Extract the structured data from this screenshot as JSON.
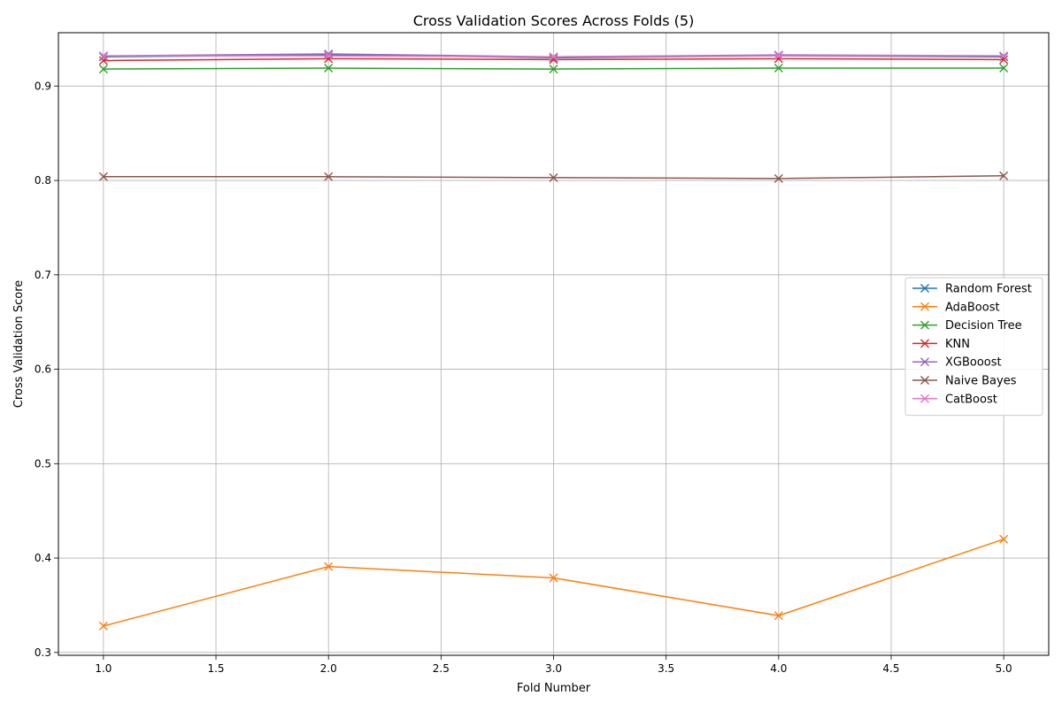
{
  "chart_data": {
    "type": "line",
    "title": "Cross Validation Scores Across Folds (5)",
    "xlabel": "Fold Number",
    "ylabel": "Cross Validation Score",
    "x": [
      1,
      2,
      3,
      4,
      5
    ],
    "xlim": [
      0.8,
      5.2
    ],
    "ylim": [
      0.297,
      0.9565
    ],
    "xticks": [
      1.0,
      1.5,
      2.0,
      2.5,
      3.0,
      3.5,
      4.0,
      4.5,
      5.0
    ],
    "xtick_labels": [
      "1.0",
      "1.5",
      "2.0",
      "2.5",
      "3.0",
      "3.5",
      "4.0",
      "4.5",
      "5.0"
    ],
    "yticks": [
      0.3,
      0.4,
      0.5,
      0.6,
      0.7,
      0.8,
      0.9
    ],
    "ytick_labels": [
      "0.3",
      "0.4",
      "0.5",
      "0.6",
      "0.7",
      "0.8",
      "0.9"
    ],
    "grid": true,
    "legend_position": "center-right",
    "marker": "x",
    "series": [
      {
        "name": "Random Forest",
        "color": "#1f77b4",
        "values": [
          0.931,
          0.933,
          0.93,
          0.932,
          0.931
        ]
      },
      {
        "name": "AdaBoost",
        "color": "#ff7f0e",
        "values": [
          0.328,
          0.391,
          0.379,
          0.339,
          0.42
        ]
      },
      {
        "name": "Decision Tree",
        "color": "#2ca02c",
        "values": [
          0.918,
          0.919,
          0.918,
          0.919,
          0.919
        ]
      },
      {
        "name": "KNN",
        "color": "#d62728",
        "values": [
          0.927,
          0.929,
          0.928,
          0.929,
          0.928
        ]
      },
      {
        "name": "XGBooost",
        "color": "#9467bd",
        "values": [
          0.932,
          0.934,
          0.931,
          0.933,
          0.932
        ]
      },
      {
        "name": "Naive Bayes",
        "color": "#8c564b",
        "values": [
          0.804,
          0.804,
          0.803,
          0.802,
          0.805
        ]
      },
      {
        "name": "CatBoost",
        "color": "#e377c2",
        "values": [
          0.932,
          0.932,
          0.931,
          0.932,
          0.932
        ]
      }
    ]
  }
}
